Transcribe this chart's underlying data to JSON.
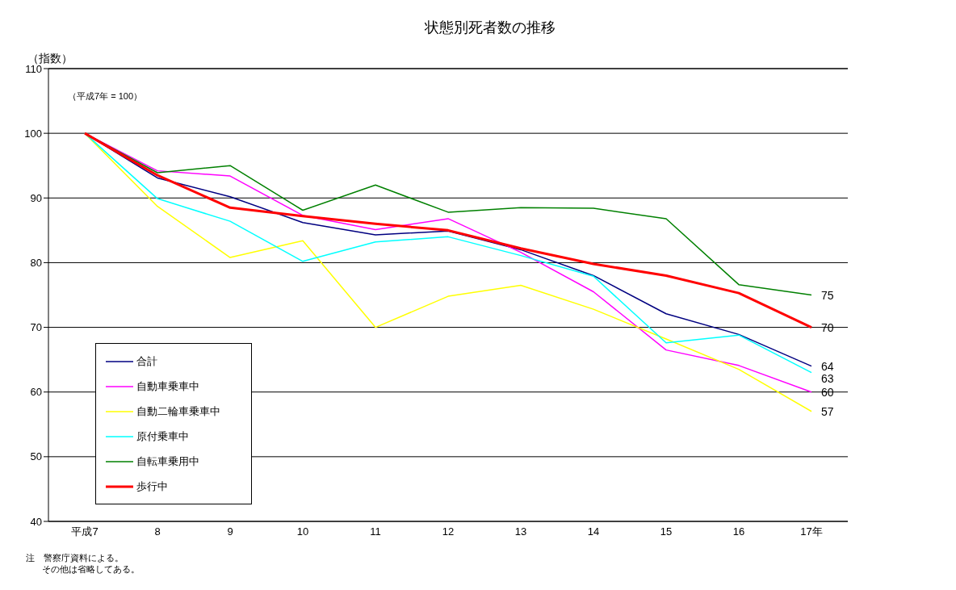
{
  "chart_data": {
    "type": "line",
    "title": "状態別死者数の推移",
    "ylabel": "（指数）",
    "annotations": [
      "（平成7年 = 100）",
      "注　警察庁資料による。",
      "その他は省略してある。"
    ],
    "categories": [
      "平成7",
      "8",
      "9",
      "10",
      "11",
      "12",
      "13",
      "14",
      "15",
      "16",
      "17年"
    ],
    "ylim": [
      40,
      110
    ],
    "yticks": [
      40,
      50,
      60,
      70,
      80,
      90,
      100,
      110
    ],
    "grid": "y",
    "legend": "bottom left",
    "marker": "none",
    "line_style": "solid",
    "series": [
      {
        "name": "合計",
        "color": "#000080",
        "values": [
          100,
          93.1,
          90.2,
          86.2,
          84.3,
          84.9,
          82.0,
          78.0,
          72.1,
          68.9,
          64
        ],
        "value_labels": [
          null,
          null,
          null,
          null,
          null,
          null,
          null,
          null,
          null,
          null,
          "64"
        ]
      },
      {
        "name": "自動車乗車中",
        "color": "#ff00ff",
        "values": [
          100,
          94.2,
          93.4,
          87.3,
          85.1,
          86.8,
          81.6,
          75.5,
          66.5,
          64.1,
          60
        ],
        "value_labels": [
          null,
          null,
          null,
          null,
          null,
          null,
          null,
          null,
          null,
          null,
          "60"
        ]
      },
      {
        "name": "自動二輪車乗車中",
        "color": "#ffff00",
        "values": [
          100,
          88.7,
          80.8,
          83.4,
          70,
          74.8,
          76.5,
          72.8,
          68.2,
          63.5,
          57
        ],
        "value_labels": [
          null,
          null,
          null,
          null,
          null,
          null,
          null,
          null,
          null,
          null,
          "57"
        ]
      },
      {
        "name": "原付乗車中",
        "color": "#00ffff",
        "values": [
          100,
          89.9,
          86.4,
          80.2,
          83.2,
          84.0,
          81.1,
          77.9,
          67.6,
          68.8,
          63
        ],
        "value_labels": [
          null,
          null,
          null,
          null,
          null,
          null,
          null,
          null,
          null,
          null,
          "63"
        ]
      },
      {
        "name": "自転車乗用中",
        "color": "#008000",
        "values": [
          100,
          93.9,
          95.0,
          88.1,
          92.0,
          87.8,
          88.5,
          88.4,
          86.8,
          76.6,
          75
        ],
        "value_labels": [
          null,
          null,
          null,
          null,
          null,
          null,
          null,
          null,
          null,
          null,
          "75"
        ]
      },
      {
        "name": "歩行中",
        "color": "#ff0000",
        "values": [
          100,
          93.5,
          88.5,
          87.2,
          86.0,
          85.0,
          82.2,
          79.8,
          78.0,
          75.3,
          70
        ],
        "value_labels": [
          null,
          null,
          null,
          null,
          null,
          null,
          null,
          null,
          null,
          null,
          "70"
        ]
      }
    ]
  }
}
